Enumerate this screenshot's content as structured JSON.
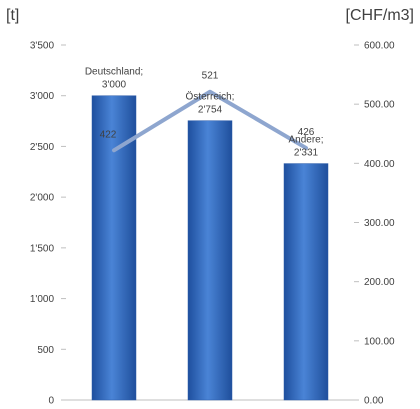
{
  "chart_data": {
    "type": "bar",
    "categories": [
      "Deutschland",
      "Österreich",
      "Andere"
    ],
    "series": [
      {
        "values": [
          3000,
          2754,
          2331
        ],
        "axis": "left",
        "labels": [
          "Deutschland;\n3'000",
          "Österreich;\n2'754",
          "Andere;\n2'331"
        ]
      },
      {
        "values": [
          422,
          521,
          426
        ],
        "axis": "right",
        "render": "line",
        "labels": [
          "422",
          "521",
          "426"
        ]
      }
    ],
    "y_left": {
      "label": "[t]",
      "ylim": [
        0,
        3500
      ],
      "ticks": [
        "0",
        "500",
        "1'000",
        "1'500",
        "2'000",
        "2'500",
        "3'000",
        "3'500"
      ]
    },
    "y_right": {
      "label": "[CHF/m3]",
      "ylim": [
        0,
        600
      ],
      "ticks": [
        "0.00",
        "100.00",
        "200.00",
        "300.00",
        "400.00",
        "500.00",
        "600.00"
      ]
    },
    "grid": false,
    "legend": "none",
    "colors": {
      "bar": "#3a6fbf",
      "line": "#8ea6cf",
      "axis": "#bfbfbf",
      "text": "#404040"
    }
  }
}
